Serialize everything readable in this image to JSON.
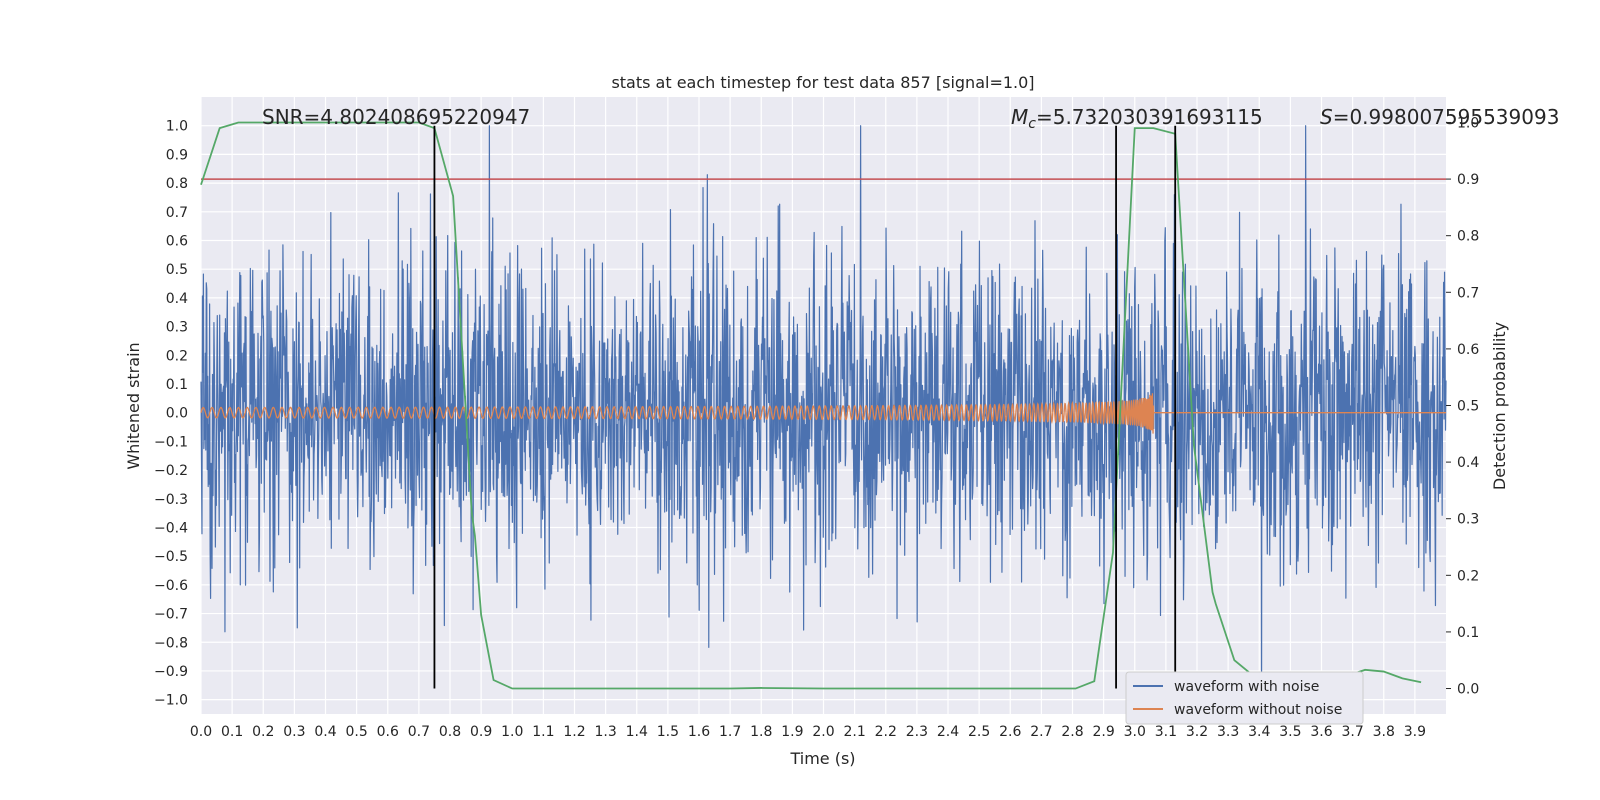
{
  "chart_data": {
    "type": "line",
    "title": "stats at each timestep for test data 857 [signal=1.0]",
    "xlabel": "Time (s)",
    "ylabel_left": "Whitened strain",
    "ylabel_right": "Detection probability",
    "xlim": [
      0.0,
      4.0
    ],
    "ylim_left": [
      -1.05,
      1.1
    ],
    "ylim_right": [
      -0.045,
      1.045
    ],
    "x_ticks": [
      "0.0",
      "0.1",
      "0.2",
      "0.3",
      "0.4",
      "0.5",
      "0.6",
      "0.7",
      "0.8",
      "0.9",
      "1.0",
      "1.1",
      "1.2",
      "1.3",
      "1.4",
      "1.5",
      "1.6",
      "1.7",
      "1.8",
      "1.9",
      "2.0",
      "2.1",
      "2.2",
      "2.3",
      "2.4",
      "2.5",
      "2.6",
      "2.7",
      "2.8",
      "2.9",
      "3.0",
      "3.1",
      "3.2",
      "3.3",
      "3.4",
      "3.5",
      "3.6",
      "3.7",
      "3.8",
      "3.9"
    ],
    "y_ticks_left": [
      "1.0",
      "0.9",
      "0.8",
      "0.7",
      "0.6",
      "0.5",
      "0.4",
      "0.3",
      "0.2",
      "0.1",
      "0.0",
      "−0.1",
      "−0.2",
      "−0.3",
      "−0.4",
      "−0.5",
      "−0.6",
      "−0.7",
      "−0.8",
      "−0.9",
      "−1.0"
    ],
    "y_ticks_right": [
      "1.0",
      "0.9",
      "0.8",
      "0.7",
      "0.6",
      "0.5",
      "0.4",
      "0.3",
      "0.2",
      "0.1",
      "0.0"
    ],
    "annotations": {
      "snr": "SNR=4.802408695220947",
      "mc": "=5.732030391693115",
      "mc_symbol": "M",
      "mc_sub": "c",
      "s": "=0.998007595539093",
      "s_symbol": "S"
    },
    "threshold": {
      "value": 0.9,
      "axis": "right",
      "color": "#c44e52"
    },
    "vertical_lines": [
      0.75,
      2.94,
      3.13
    ],
    "series": [
      {
        "name": "waveform with noise",
        "color": "#4c72b0",
        "kind": "noise",
        "amplitude_range": [
          -0.95,
          1.0
        ]
      },
      {
        "name": "waveform without noise",
        "color": "#dd8452",
        "kind": "chirp",
        "end_time": 3.06,
        "peak_amplitude": 0.13
      },
      {
        "name": "Detection probability",
        "color": "#55a868",
        "axis": "right",
        "x": [
          0.0,
          0.06,
          0.12,
          0.2,
          0.3,
          0.4,
          0.5,
          0.6,
          0.7,
          0.75,
          0.81,
          0.87,
          0.88,
          0.9,
          0.94,
          1.0,
          1.1,
          1.3,
          1.5,
          1.7,
          1.8,
          2.0,
          2.2,
          2.4,
          2.6,
          2.75,
          2.81,
          2.87,
          2.93,
          3.0,
          3.06,
          3.13,
          3.19,
          3.25,
          3.26,
          3.32,
          3.38,
          3.44,
          3.5,
          3.56,
          3.62,
          3.68,
          3.74,
          3.8,
          3.86,
          3.92
        ],
        "y": [
          0.89,
          0.99,
          1.0,
          1.0,
          1.0,
          1.0,
          1.0,
          1.0,
          1.0,
          0.99,
          0.87,
          0.31,
          0.27,
          0.13,
          0.015,
          0.0,
          0.0,
          0.0,
          0.0,
          0.0,
          0.001,
          0.0,
          0.0,
          0.0,
          0.0,
          0.0,
          0.0,
          0.013,
          0.24,
          0.99,
          0.99,
          0.98,
          0.43,
          0.17,
          0.15,
          0.05,
          0.023,
          0.016,
          0.013,
          0.012,
          0.016,
          0.022,
          0.033,
          0.03,
          0.018,
          0.011
        ]
      }
    ],
    "legend": {
      "position": "lower-right",
      "entries": [
        "waveform with noise",
        "waveform without noise"
      ]
    }
  }
}
